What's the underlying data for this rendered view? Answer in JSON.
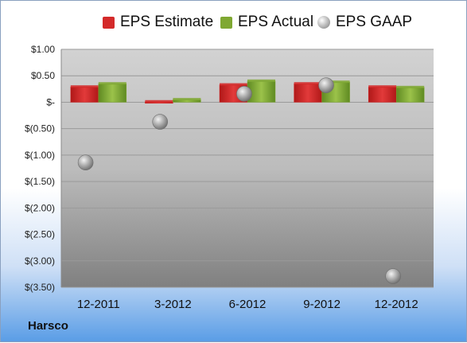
{
  "colors": {
    "estimate": "#d42a2a",
    "actual": "#7fa832",
    "gaap": "#9c9c9c"
  },
  "legend": [
    {
      "label": "EPS Estimate",
      "color": "#d42a2a",
      "shape": "square"
    },
    {
      "label": "EPS Actual",
      "color": "#7fa832",
      "shape": "square"
    },
    {
      "label": "EPS GAAP",
      "color": "#9c9c9c",
      "shape": "sphere"
    }
  ],
  "company": "Harsco",
  "chart_data": {
    "type": "bar",
    "categories": [
      "12-2011",
      "3-2012",
      "6-2012",
      "9-2012",
      "12-2012"
    ],
    "series": [
      {
        "name": "EPS Estimate",
        "values": [
          0.29,
          0.01,
          0.33,
          0.35,
          0.29
        ]
      },
      {
        "name": "EPS Actual",
        "values": [
          0.35,
          0.05,
          0.4,
          0.38,
          0.28
        ]
      },
      {
        "name": "EPS GAAP",
        "values": [
          -1.14,
          -0.37,
          0.16,
          0.32,
          -3.29
        ],
        "mark": "sphere"
      }
    ],
    "yticks": [
      "$1.00",
      "$0.50",
      "$-",
      "$(0.50)",
      "$(1.00)",
      "$(1.50)",
      "$(2.00)",
      "$(2.50)",
      "$(3.00)",
      "$(3.50)"
    ],
    "ylim": [
      -3.5,
      1.0
    ],
    "grid": true,
    "legend_position": "top"
  }
}
